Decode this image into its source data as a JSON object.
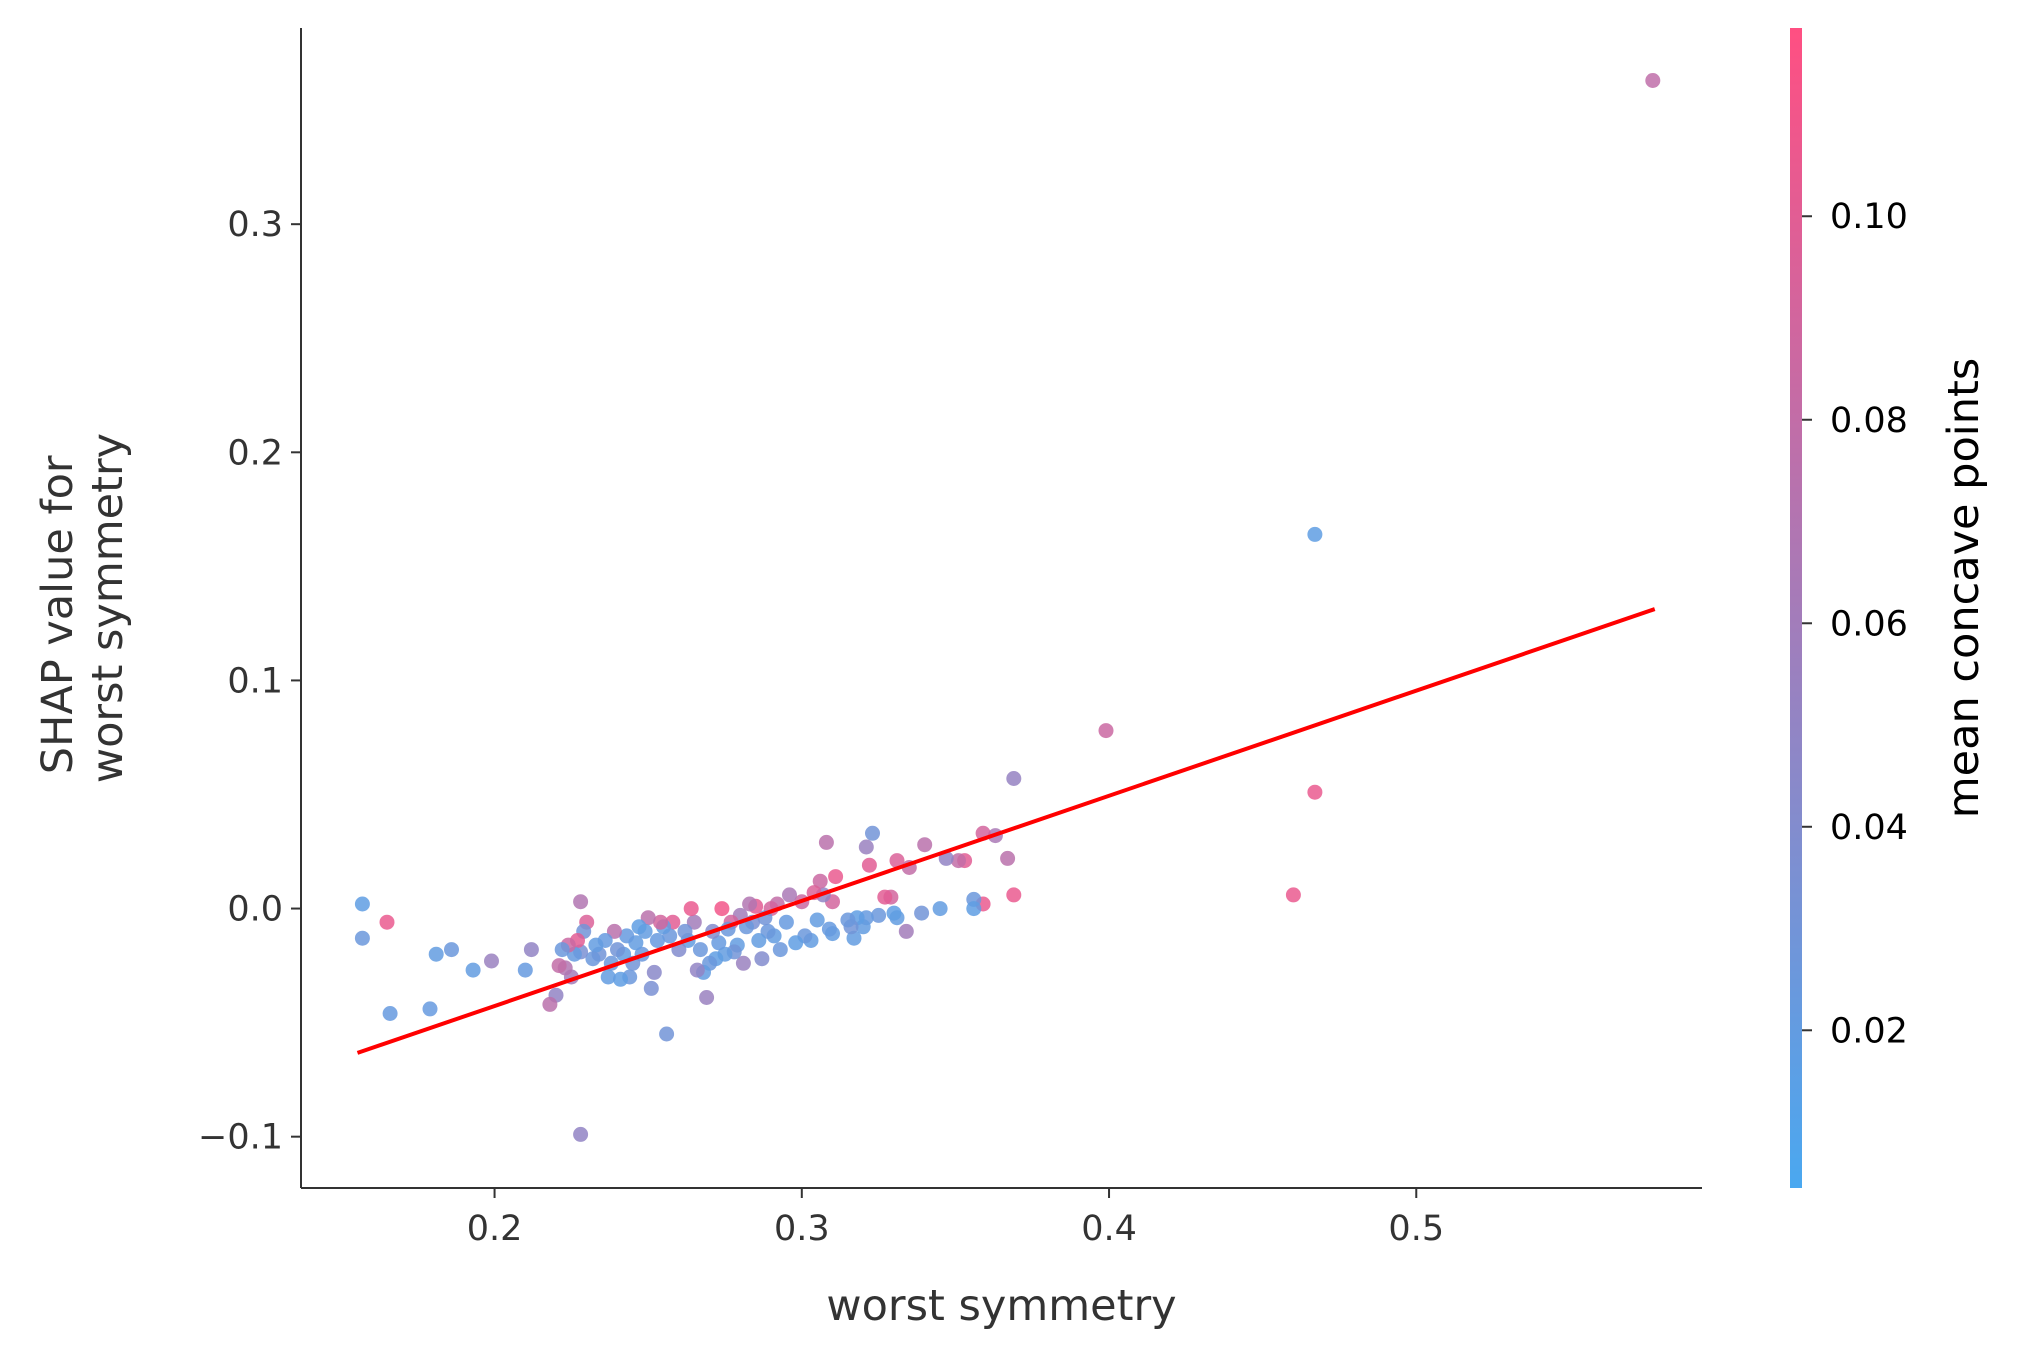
{
  "chart_data": {
    "type": "scatter",
    "xlabel": "worst symmetry",
    "ylabel_lines": [
      "SHAP value for",
      "worst symmetry"
    ],
    "xlim": [
      0.137,
      0.593
    ],
    "ylim": [
      -0.1225,
      0.386
    ],
    "xticks": [
      0.2,
      0.3,
      0.4,
      0.5
    ],
    "xtick_labels": [
      "0.2",
      "0.3",
      "0.4",
      "0.5"
    ],
    "yticks": [
      -0.1,
      0.0,
      0.1,
      0.2,
      0.3
    ],
    "ytick_labels": [
      "−0.1",
      "0.0",
      "0.1",
      "0.2",
      "0.3"
    ],
    "colorbar": {
      "label": "mean concave points",
      "range": [
        0.0045,
        0.1185
      ],
      "ticks": [
        0.02,
        0.04,
        0.06,
        0.08,
        0.1
      ],
      "tick_labels": [
        "0.02",
        "0.04",
        "0.06",
        "0.08",
        "0.10"
      ],
      "color_low": "#4aa8f0",
      "color_high": "#ff4f82"
    },
    "trend_line": {
      "x": [
        0.156,
        0.577
      ],
      "y": [
        -0.063,
        0.131
      ],
      "color": "#ff0000"
    },
    "points": [
      {
        "x": 0.577,
        "y": 0.363,
        "c": 0.078
      },
      {
        "x": 0.467,
        "y": 0.164,
        "c": 0.018
      },
      {
        "x": 0.467,
        "y": 0.051,
        "c": 0.105
      },
      {
        "x": 0.46,
        "y": 0.006,
        "c": 0.105
      },
      {
        "x": 0.399,
        "y": 0.078,
        "c": 0.085
      },
      {
        "x": 0.369,
        "y": 0.057,
        "c": 0.052
      },
      {
        "x": 0.369,
        "y": 0.006,
        "c": 0.105
      },
      {
        "x": 0.367,
        "y": 0.022,
        "c": 0.075
      },
      {
        "x": 0.363,
        "y": 0.032,
        "c": 0.065
      },
      {
        "x": 0.359,
        "y": 0.033,
        "c": 0.09
      },
      {
        "x": 0.359,
        "y": 0.002,
        "c": 0.105
      },
      {
        "x": 0.356,
        "y": 0.004,
        "c": 0.025
      },
      {
        "x": 0.356,
        "y": 0.0,
        "c": 0.018
      },
      {
        "x": 0.353,
        "y": 0.021,
        "c": 0.1
      },
      {
        "x": 0.351,
        "y": 0.021,
        "c": 0.08
      },
      {
        "x": 0.347,
        "y": 0.022,
        "c": 0.05
      },
      {
        "x": 0.345,
        "y": 0.0,
        "c": 0.02
      },
      {
        "x": 0.34,
        "y": 0.028,
        "c": 0.075
      },
      {
        "x": 0.339,
        "y": -0.002,
        "c": 0.03
      },
      {
        "x": 0.335,
        "y": 0.018,
        "c": 0.08
      },
      {
        "x": 0.334,
        "y": -0.01,
        "c": 0.06
      },
      {
        "x": 0.331,
        "y": 0.021,
        "c": 0.095
      },
      {
        "x": 0.331,
        "y": -0.004,
        "c": 0.02
      },
      {
        "x": 0.33,
        "y": -0.002,
        "c": 0.018
      },
      {
        "x": 0.329,
        "y": 0.005,
        "c": 0.09
      },
      {
        "x": 0.327,
        "y": 0.005,
        "c": 0.1
      },
      {
        "x": 0.325,
        "y": -0.003,
        "c": 0.025
      },
      {
        "x": 0.323,
        "y": 0.033,
        "c": 0.03
      },
      {
        "x": 0.322,
        "y": 0.019,
        "c": 0.1
      },
      {
        "x": 0.321,
        "y": 0.027,
        "c": 0.055
      },
      {
        "x": 0.321,
        "y": -0.004,
        "c": 0.022
      },
      {
        "x": 0.32,
        "y": -0.008,
        "c": 0.02
      },
      {
        "x": 0.318,
        "y": -0.004,
        "c": 0.018
      },
      {
        "x": 0.317,
        "y": -0.013,
        "c": 0.02
      },
      {
        "x": 0.316,
        "y": -0.008,
        "c": 0.03
      },
      {
        "x": 0.315,
        "y": -0.005,
        "c": 0.025
      },
      {
        "x": 0.311,
        "y": 0.014,
        "c": 0.105
      },
      {
        "x": 0.31,
        "y": 0.003,
        "c": 0.09
      },
      {
        "x": 0.31,
        "y": -0.011,
        "c": 0.02
      },
      {
        "x": 0.309,
        "y": -0.009,
        "c": 0.022
      },
      {
        "x": 0.308,
        "y": 0.029,
        "c": 0.075
      },
      {
        "x": 0.307,
        "y": 0.006,
        "c": 0.05
      },
      {
        "x": 0.306,
        "y": 0.012,
        "c": 0.085
      },
      {
        "x": 0.305,
        "y": -0.005,
        "c": 0.02
      },
      {
        "x": 0.304,
        "y": 0.007,
        "c": 0.095
      },
      {
        "x": 0.303,
        "y": -0.014,
        "c": 0.02
      },
      {
        "x": 0.301,
        "y": -0.012,
        "c": 0.025
      },
      {
        "x": 0.3,
        "y": 0.003,
        "c": 0.085
      },
      {
        "x": 0.298,
        "y": -0.015,
        "c": 0.018
      },
      {
        "x": 0.296,
        "y": 0.006,
        "c": 0.065
      },
      {
        "x": 0.295,
        "y": -0.006,
        "c": 0.022
      },
      {
        "x": 0.293,
        "y": -0.018,
        "c": 0.025
      },
      {
        "x": 0.292,
        "y": 0.002,
        "c": 0.08
      },
      {
        "x": 0.291,
        "y": -0.012,
        "c": 0.02
      },
      {
        "x": 0.29,
        "y": 0.0,
        "c": 0.09
      },
      {
        "x": 0.289,
        "y": -0.01,
        "c": 0.025
      },
      {
        "x": 0.288,
        "y": -0.004,
        "c": 0.03
      },
      {
        "x": 0.287,
        "y": -0.022,
        "c": 0.04
      },
      {
        "x": 0.286,
        "y": -0.014,
        "c": 0.02
      },
      {
        "x": 0.285,
        "y": 0.001,
        "c": 0.1
      },
      {
        "x": 0.284,
        "y": -0.006,
        "c": 0.035
      },
      {
        "x": 0.283,
        "y": 0.002,
        "c": 0.07
      },
      {
        "x": 0.282,
        "y": -0.008,
        "c": 0.025
      },
      {
        "x": 0.281,
        "y": -0.024,
        "c": 0.055
      },
      {
        "x": 0.28,
        "y": -0.003,
        "c": 0.06
      },
      {
        "x": 0.279,
        "y": -0.016,
        "c": 0.02
      },
      {
        "x": 0.278,
        "y": -0.019,
        "c": 0.03
      },
      {
        "x": 0.277,
        "y": -0.006,
        "c": 0.09
      },
      {
        "x": 0.276,
        "y": -0.009,
        "c": 0.025
      },
      {
        "x": 0.275,
        "y": -0.02,
        "c": 0.02
      },
      {
        "x": 0.274,
        "y": 0.0,
        "c": 0.11
      },
      {
        "x": 0.273,
        "y": -0.015,
        "c": 0.022
      },
      {
        "x": 0.272,
        "y": -0.022,
        "c": 0.018
      },
      {
        "x": 0.271,
        "y": -0.01,
        "c": 0.04
      },
      {
        "x": 0.27,
        "y": -0.024,
        "c": 0.025
      },
      {
        "x": 0.269,
        "y": -0.039,
        "c": 0.055
      },
      {
        "x": 0.268,
        "y": -0.028,
        "c": 0.02
      },
      {
        "x": 0.267,
        "y": -0.018,
        "c": 0.025
      },
      {
        "x": 0.266,
        "y": -0.027,
        "c": 0.05
      },
      {
        "x": 0.265,
        "y": -0.006,
        "c": 0.06
      },
      {
        "x": 0.264,
        "y": 0.0,
        "c": 0.105
      },
      {
        "x": 0.263,
        "y": -0.014,
        "c": 0.02
      },
      {
        "x": 0.262,
        "y": -0.01,
        "c": 0.03
      },
      {
        "x": 0.26,
        "y": -0.018,
        "c": 0.04
      },
      {
        "x": 0.258,
        "y": -0.006,
        "c": 0.1
      },
      {
        "x": 0.257,
        "y": -0.012,
        "c": 0.025
      },
      {
        "x": 0.256,
        "y": -0.055,
        "c": 0.03
      },
      {
        "x": 0.255,
        "y": -0.008,
        "c": 0.02
      },
      {
        "x": 0.254,
        "y": -0.006,
        "c": 0.09
      },
      {
        "x": 0.253,
        "y": -0.014,
        "c": 0.022
      },
      {
        "x": 0.252,
        "y": -0.028,
        "c": 0.045
      },
      {
        "x": 0.251,
        "y": -0.035,
        "c": 0.035
      },
      {
        "x": 0.25,
        "y": -0.004,
        "c": 0.075
      },
      {
        "x": 0.249,
        "y": -0.01,
        "c": 0.02
      },
      {
        "x": 0.248,
        "y": -0.02,
        "c": 0.025
      },
      {
        "x": 0.247,
        "y": -0.008,
        "c": 0.018
      },
      {
        "x": 0.246,
        "y": -0.015,
        "c": 0.02
      },
      {
        "x": 0.245,
        "y": -0.024,
        "c": 0.03
      },
      {
        "x": 0.244,
        "y": -0.03,
        "c": 0.025
      },
      {
        "x": 0.243,
        "y": -0.012,
        "c": 0.022
      },
      {
        "x": 0.242,
        "y": -0.02,
        "c": 0.02
      },
      {
        "x": 0.241,
        "y": -0.031,
        "c": 0.018
      },
      {
        "x": 0.24,
        "y": -0.018,
        "c": 0.03
      },
      {
        "x": 0.239,
        "y": -0.01,
        "c": 0.075
      },
      {
        "x": 0.238,
        "y": -0.024,
        "c": 0.025
      },
      {
        "x": 0.237,
        "y": -0.03,
        "c": 0.02
      },
      {
        "x": 0.236,
        "y": -0.014,
        "c": 0.022
      },
      {
        "x": 0.234,
        "y": -0.02,
        "c": 0.03
      },
      {
        "x": 0.233,
        "y": -0.016,
        "c": 0.02
      },
      {
        "x": 0.232,
        "y": -0.022,
        "c": 0.025
      },
      {
        "x": 0.23,
        "y": -0.006,
        "c": 0.095
      },
      {
        "x": 0.229,
        "y": -0.01,
        "c": 0.03
      },
      {
        "x": 0.228,
        "y": -0.019,
        "c": 0.035
      },
      {
        "x": 0.228,
        "y": 0.003,
        "c": 0.07
      },
      {
        "x": 0.228,
        "y": -0.099,
        "c": 0.05
      },
      {
        "x": 0.227,
        "y": -0.014,
        "c": 0.1
      },
      {
        "x": 0.226,
        "y": -0.02,
        "c": 0.022
      },
      {
        "x": 0.225,
        "y": -0.03,
        "c": 0.06
      },
      {
        "x": 0.224,
        "y": -0.016,
        "c": 0.085
      },
      {
        "x": 0.223,
        "y": -0.026,
        "c": 0.07
      },
      {
        "x": 0.222,
        "y": -0.018,
        "c": 0.025
      },
      {
        "x": 0.221,
        "y": -0.025,
        "c": 0.08
      },
      {
        "x": 0.22,
        "y": -0.038,
        "c": 0.05
      },
      {
        "x": 0.218,
        "y": -0.042,
        "c": 0.075
      },
      {
        "x": 0.212,
        "y": -0.018,
        "c": 0.05
      },
      {
        "x": 0.21,
        "y": -0.027,
        "c": 0.022
      },
      {
        "x": 0.199,
        "y": -0.023,
        "c": 0.055
      },
      {
        "x": 0.193,
        "y": -0.027,
        "c": 0.02
      },
      {
        "x": 0.186,
        "y": -0.018,
        "c": 0.025
      },
      {
        "x": 0.181,
        "y": -0.02,
        "c": 0.02
      },
      {
        "x": 0.179,
        "y": -0.044,
        "c": 0.022
      },
      {
        "x": 0.165,
        "y": -0.006,
        "c": 0.105
      },
      {
        "x": 0.166,
        "y": -0.046,
        "c": 0.022
      },
      {
        "x": 0.157,
        "y": 0.002,
        "c": 0.018
      },
      {
        "x": 0.157,
        "y": -0.013,
        "c": 0.025
      }
    ]
  }
}
